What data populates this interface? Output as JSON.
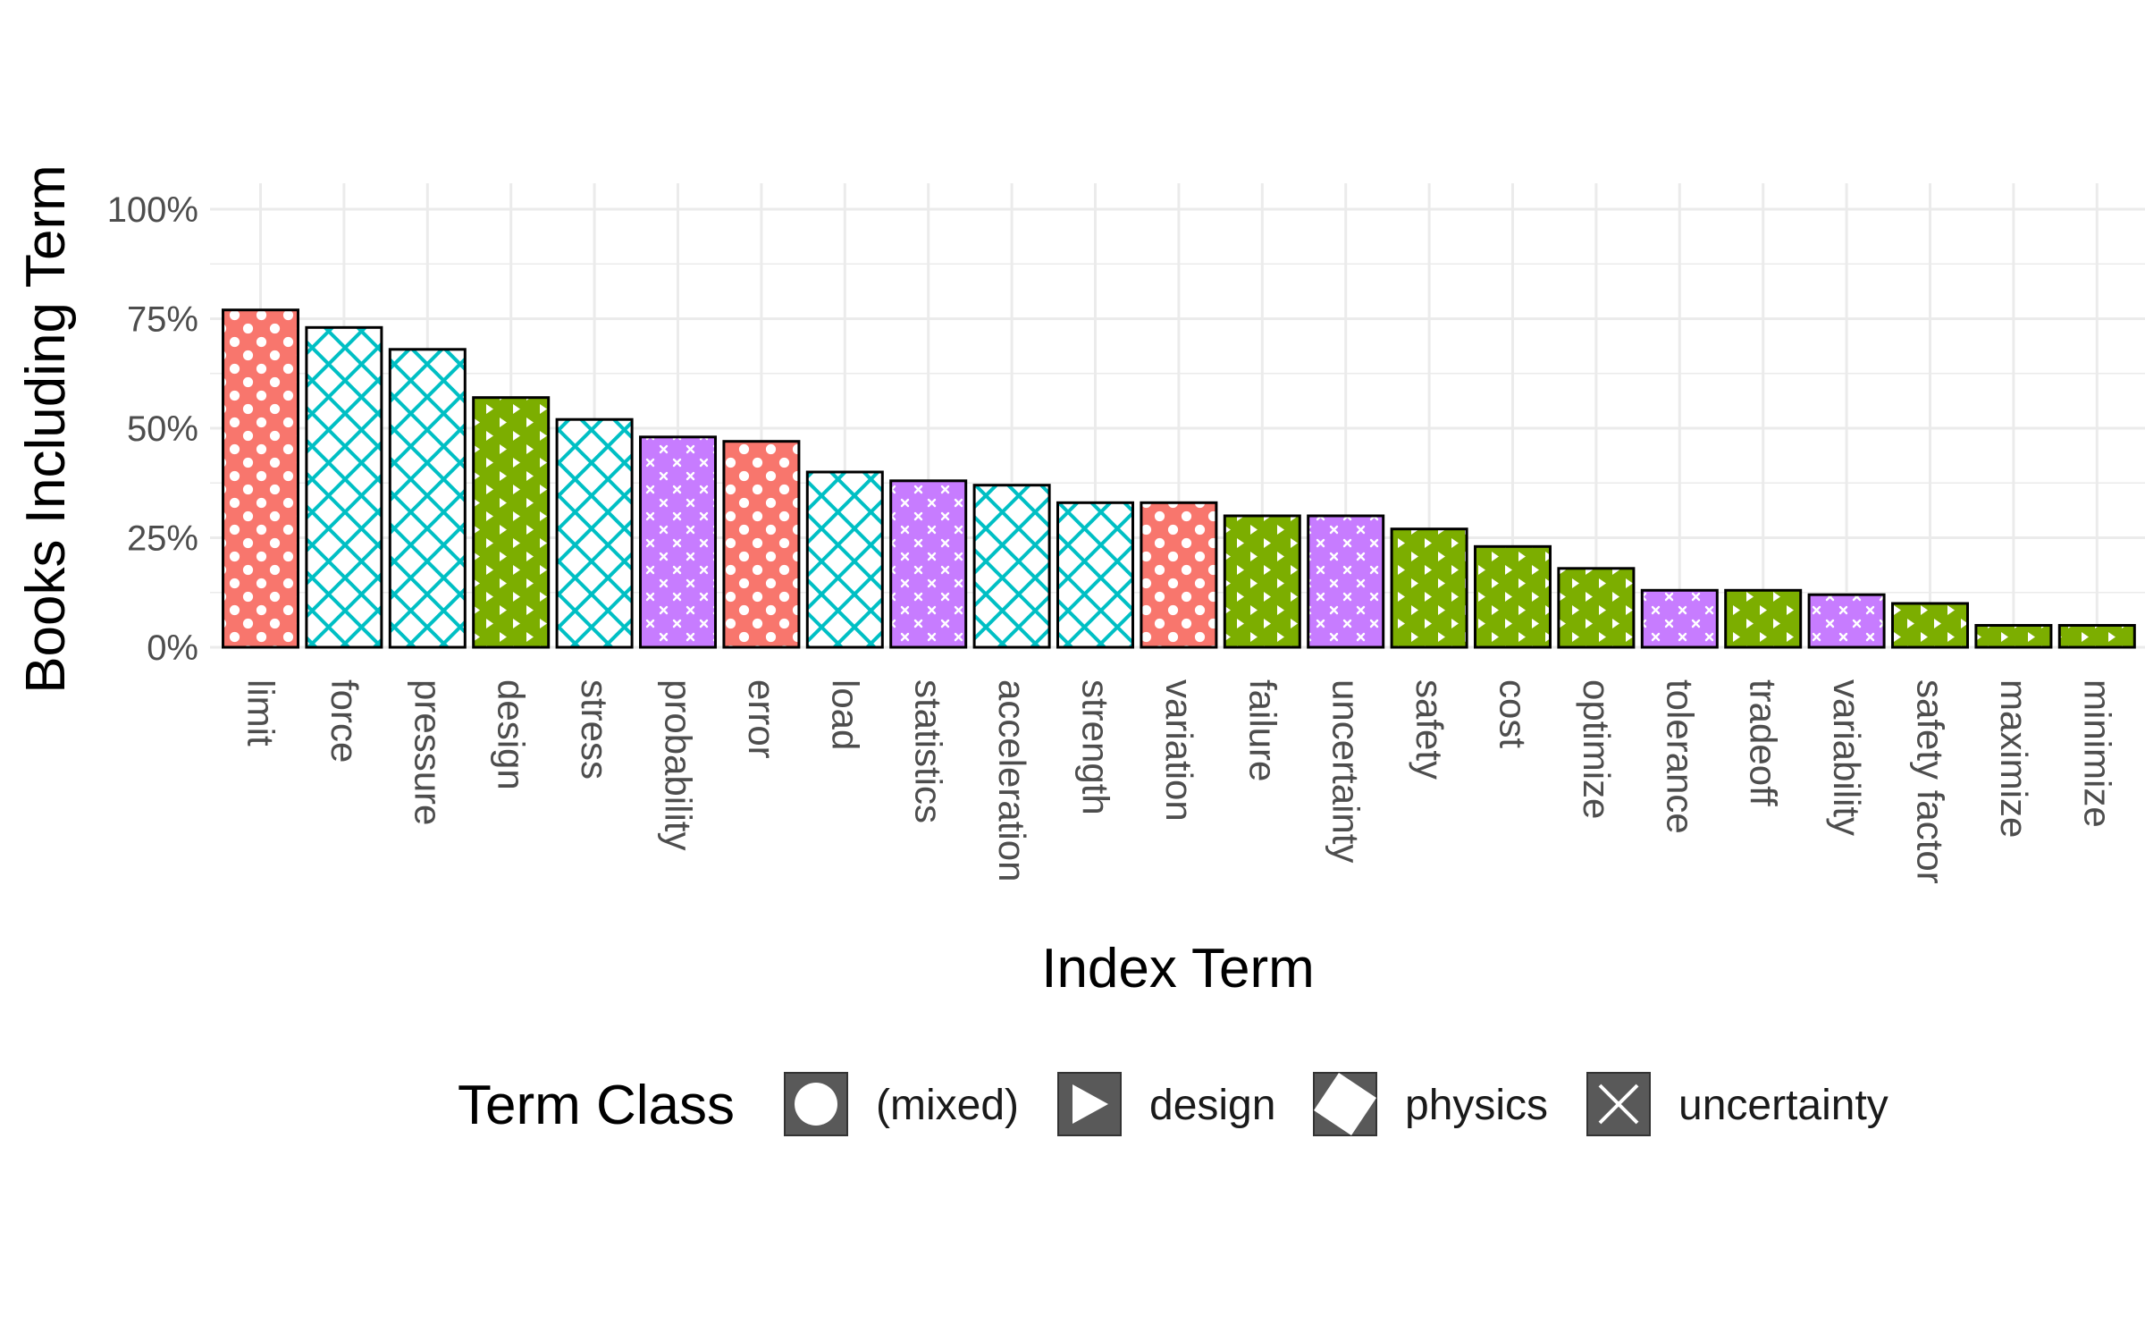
{
  "chart_data": {
    "type": "bar",
    "title": "",
    "xlabel": "Index Term",
    "ylabel": "Books Including Term",
    "ylim": [
      0,
      1
    ],
    "y_ticks": [
      0,
      0.25,
      0.5,
      0.75,
      1.0
    ],
    "y_tick_labels": [
      "0%",
      "25%",
      "50%",
      "75%",
      "100%"
    ],
    "grid": true,
    "legend_position": "bottom",
    "legend_title": "Term Class",
    "classes": [
      {
        "key": "mixed",
        "label": "(mixed)",
        "color": "#F8766D",
        "pattern": "circle"
      },
      {
        "key": "design",
        "label": "design",
        "color": "#7CAE00",
        "pattern": "triangle"
      },
      {
        "key": "physics",
        "label": "physics",
        "color": "#00BFC4",
        "pattern": "diamond"
      },
      {
        "key": "uncertainty",
        "label": "uncertainty",
        "color": "#C77CFF",
        "pattern": "cross"
      }
    ],
    "categories": [
      "limit",
      "force",
      "pressure",
      "design",
      "stress",
      "probability",
      "error",
      "load",
      "statistics",
      "acceleration",
      "strength",
      "variation",
      "failure",
      "uncertainty",
      "safety",
      "cost",
      "optimize",
      "tolerance",
      "tradeoff",
      "variability",
      "safety factor",
      "maximize",
      "minimize"
    ],
    "values": [
      0.77,
      0.73,
      0.68,
      0.57,
      0.52,
      0.48,
      0.47,
      0.4,
      0.38,
      0.37,
      0.33,
      0.33,
      0.3,
      0.3,
      0.27,
      0.23,
      0.18,
      0.13,
      0.13,
      0.12,
      0.1,
      0.05,
      0.05
    ],
    "class": [
      "mixed",
      "physics",
      "physics",
      "design",
      "physics",
      "uncertainty",
      "mixed",
      "physics",
      "uncertainty",
      "physics",
      "physics",
      "mixed",
      "design",
      "uncertainty",
      "design",
      "design",
      "design",
      "uncertainty",
      "design",
      "uncertainty",
      "design",
      "design",
      "design"
    ]
  }
}
